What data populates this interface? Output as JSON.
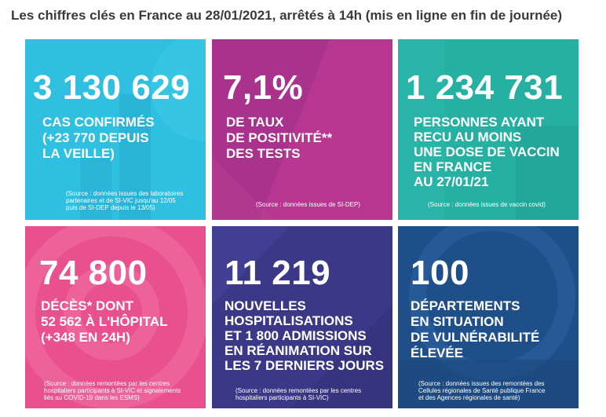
{
  "header": {
    "title": "Les chiffres clés en France au 28/01/2021, arrêtés à 14h (mis en ligne en fin de journée)"
  },
  "colors": {
    "cyan": "#2fbfe0",
    "magenta": "#a8328c",
    "teal": "#25b0a2",
    "pink": "#e9508e",
    "indigo": "#3b3987",
    "navy": "#1f4f88"
  },
  "tiles": {
    "cases": {
      "value": "3 130 629",
      "lines": [
        "CAS CONFIRMÉS",
        "(+23 770 DEPUIS",
        "LA VEILLE)"
      ],
      "source": [
        "(Source : données issues des laboratoires",
        "partenaires et de SI-VIC jusqu'au 12/05",
        "puis de SI-DEP depuis le 13/05)"
      ]
    },
    "positivity": {
      "value": "7,1%",
      "lines": [
        "DE TAUX",
        "DE POSITIVITÉ**",
        "DES TESTS"
      ],
      "source": [
        "(Source : données issues de SI-DEP)"
      ]
    },
    "vaccine": {
      "value": "1 234 731",
      "lines": [
        "PERSONNES AYANT",
        "RECU AU MOINS",
        "UNE DOSE DE VACCIN",
        "EN FRANCE",
        "AU 27/01/21"
      ],
      "source": [
        "(Source : données issues de vaccin covid)"
      ]
    },
    "deaths": {
      "value": "74 800",
      "lines": [
        "DÉCÈS* DONT",
        "52 562 À L'HÔPITAL",
        "(+348 EN 24H)"
      ],
      "source": [
        "(Source : données remontées par les centres",
        "hospitaliers participants à SI-VIC et signalements",
        "liés au COVID-19 dans les ESMS)"
      ]
    },
    "hospital": {
      "value": "11 219",
      "lines": [
        "NOUVELLES",
        "HOSPITALISATIONS",
        "ET 1 800 ADMISSIONS",
        "EN RÉANIMATION SUR",
        "LES 7 DERNIERS JOURS"
      ],
      "source": [
        "(Source : données remontées par les centres",
        "hospitaliers participants à SI-VIC)"
      ]
    },
    "departments": {
      "value": "100",
      "lines": [
        "DÉPARTEMENTS",
        "EN SITUATION",
        "DE VULNÉRABILITÉ",
        "ÉLEVÉE"
      ],
      "source": [
        "(Source : données issues des remontées des",
        "Cellules régionales de Santé publique France",
        "et des Agences régionales de santé)"
      ]
    }
  }
}
